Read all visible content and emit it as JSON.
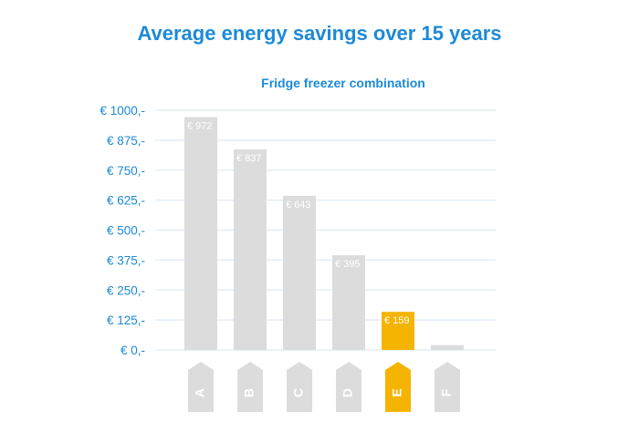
{
  "chart_data": {
    "type": "bar",
    "title": "Average energy savings over 15 years",
    "subtitle": "Fridge freezer combination",
    "categories": [
      "A",
      "B",
      "C",
      "D",
      "E",
      "F"
    ],
    "values": [
      972,
      837,
      643,
      395,
      159,
      20
    ],
    "value_labels": [
      "€ 972",
      "€ 837",
      "€ 643",
      "€ 395",
      "€ 159",
      ""
    ],
    "highlight_index": 4,
    "yticks": [
      0,
      125,
      250,
      375,
      500,
      625,
      750,
      875,
      1000
    ],
    "ytick_labels": [
      "€ 0,-",
      "€ 125,-",
      "€ 250,-",
      "€ 375,-",
      "€ 500,-",
      "€ 625,-",
      "€ 750,-",
      "€ 875,-",
      "€ 1000,-"
    ],
    "ylim": [
      0,
      1000
    ],
    "grid": true,
    "colors": {
      "bar": "#dcdcdc",
      "highlight": "#f5b400",
      "grid": "#e4eef7",
      "text": "#1c8ad8"
    }
  }
}
